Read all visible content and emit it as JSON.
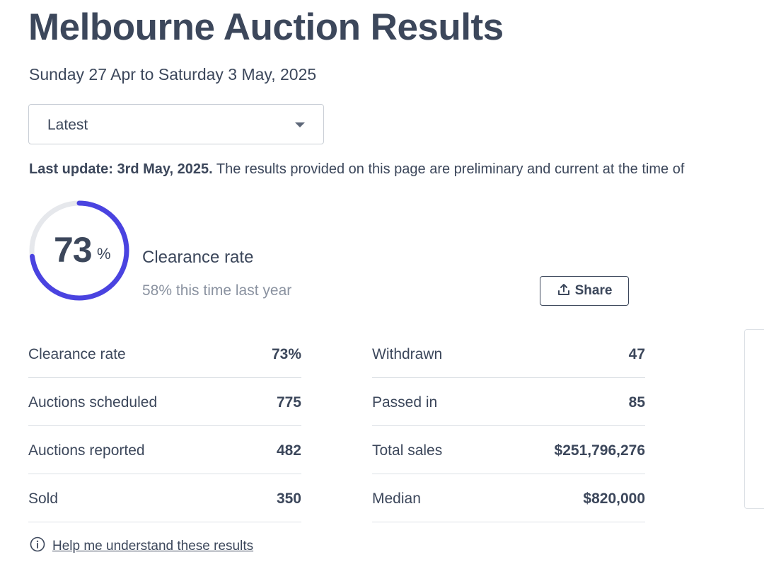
{
  "page": {
    "title": "Melbourne Auction Results",
    "date_range": "Sunday 27 Apr to Saturday 3 May, 2025"
  },
  "period_select": {
    "value": "Latest",
    "icon": "chevron-down-icon"
  },
  "update_note": {
    "bold": "Last update: 3rd May, 2025.",
    "text": " The results provided on this page are preliminary and current at the time of"
  },
  "gauge": {
    "value": 73,
    "number": "73",
    "unit": "%",
    "label": "Clearance rate",
    "comparison": "58% this time last year",
    "colors": {
      "fill": "#4a43e0",
      "track": "#e6e8ec"
    }
  },
  "share": {
    "label": "Share",
    "icon": "share-upload-icon"
  },
  "stats": {
    "left": [
      {
        "label": "Clearance rate",
        "value": "73%"
      },
      {
        "label": "Auctions scheduled",
        "value": "775"
      },
      {
        "label": "Auctions reported",
        "value": "482"
      },
      {
        "label": "Sold",
        "value": "350"
      }
    ],
    "right": [
      {
        "label": "Withdrawn",
        "value": "47"
      },
      {
        "label": "Passed in",
        "value": "85"
      },
      {
        "label": "Total sales",
        "value": "$251,796,276"
      },
      {
        "label": "Median",
        "value": "$820,000"
      }
    ]
  },
  "help": {
    "label": "Help me understand these results",
    "icon": "info-icon"
  }
}
